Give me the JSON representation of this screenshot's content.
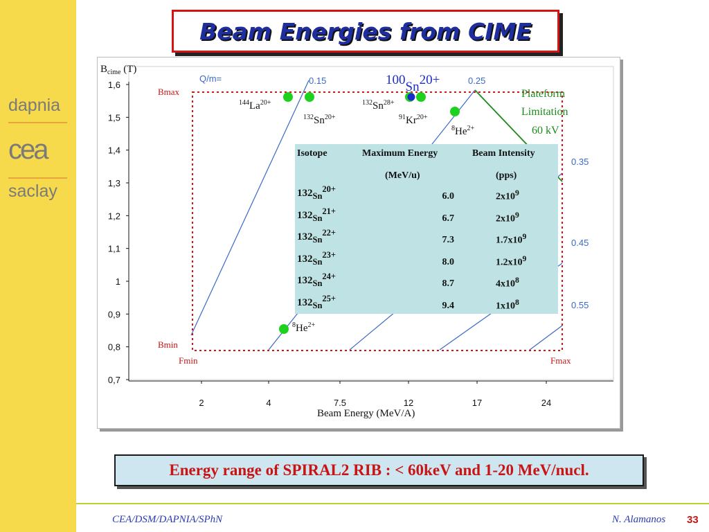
{
  "slide": {
    "title": "Beam Energies from CIME",
    "bottom_text": "Energy range of SPIRAL2 RIB : < 60keV and 1-20 MeV/nucl.",
    "footer_left": "CEA/DSM/DAPNIA/SPhN",
    "footer_right": "N. Alamanos",
    "page_number": "33"
  },
  "logo": {
    "top": "dapnia",
    "middle": "cea",
    "bottom": "saclay"
  },
  "chart_data": {
    "type": "scatter",
    "ylabel_main": "B",
    "ylabel_sub": "cime",
    "ylabel_unit": " (T)",
    "xlabel": "Beam Energy (MeV/A)",
    "x_tick_labels": [
      "2",
      "4",
      "7.5",
      "12",
      "17",
      "24"
    ],
    "y_tick_labels": [
      "0,7",
      "0,8",
      "0,9",
      "1",
      "1,1",
      "1,2",
      "1,3",
      "1,4",
      "1,5",
      "1,6"
    ],
    "ylim": [
      0.7,
      1.6
    ],
    "qm_header": "Q/m=",
    "qm_values": [
      "0.15",
      "0.25",
      "0.35",
      "0.45",
      "0.55"
    ],
    "limits": {
      "bmax": "Bmax",
      "bmin": "Bmin",
      "fmin": "Fmin",
      "fmax": "Fmax"
    },
    "plateform_label": [
      "Plateform",
      "Limitation",
      "60 kV"
    ],
    "highlight": {
      "mass": "100",
      "element": "Sn",
      "charge": "20+"
    },
    "points": [
      {
        "mass": "144",
        "element": "La",
        "charge": "20+",
        "b": 1.56
      },
      {
        "mass": "132",
        "element": "Sn",
        "charge": "20+",
        "b": 1.56
      },
      {
        "mass": "132",
        "element": "Sn",
        "charge": "28+",
        "b": 1.56
      },
      {
        "mass": "91",
        "element": "Kr",
        "charge": "20+",
        "b": 1.56
      },
      {
        "mass": "8",
        "element": "He",
        "charge": "2+",
        "b": 1.52
      },
      {
        "mass": "8",
        "element": "He",
        "charge": "2+",
        "b": 0.85
      }
    ],
    "point_color": "#1fd11f",
    "highlight_color": "#1a2bd0",
    "limit_color": "#d21414",
    "qm_line_color": "#3a68c8",
    "plateform_color": "#1a8a1a"
  },
  "table": {
    "headers": [
      "Isotope",
      "Maximum Energy",
      "Beam Intensity"
    ],
    "subheaders": [
      "",
      "(MeV/u)",
      "(pps)"
    ],
    "rows": [
      {
        "mass": "132",
        "element": "Sn",
        "charge": "20+",
        "energy": "6.0",
        "intensity_base": "2x10",
        "intensity_exp": "9"
      },
      {
        "mass": "132",
        "element": "Sn",
        "charge": "21+",
        "energy": "6.7",
        "intensity_base": "2x10",
        "intensity_exp": "9"
      },
      {
        "mass": "132",
        "element": "Sn",
        "charge": "22+",
        "energy": "7.3",
        "intensity_base": "1.7x10",
        "intensity_exp": "9"
      },
      {
        "mass": "132",
        "element": "Sn",
        "charge": "23+",
        "energy": "8.0",
        "intensity_base": "1.2x10",
        "intensity_exp": "9"
      },
      {
        "mass": "132",
        "element": "Sn",
        "charge": "24+",
        "energy": "8.7",
        "intensity_base": "4x10",
        "intensity_exp": "8"
      },
      {
        "mass": "132",
        "element": "Sn",
        "charge": "25+",
        "energy": "9.4",
        "intensity_base": "1x10",
        "intensity_exp": "8"
      }
    ]
  }
}
